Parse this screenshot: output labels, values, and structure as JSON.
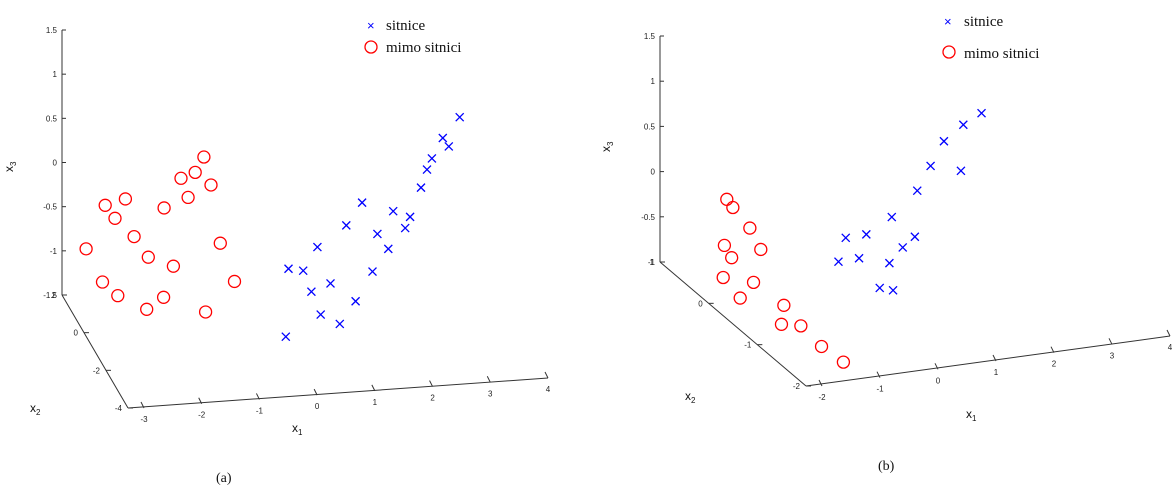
{
  "chart_data": [
    {
      "type": "scatter",
      "panel": "a",
      "caption": "(a)",
      "xlabel": "x1",
      "ylabel": "x2",
      "zlabel": "x3",
      "xlim": [
        -3,
        4
      ],
      "ylim": [
        -4,
        2
      ],
      "zlim": [
        -1.5,
        1.5
      ],
      "x_ticks": [
        "-3",
        "-2",
        "-1",
        "0",
        "1",
        "2",
        "3",
        "4"
      ],
      "y_ticks": [
        "-4",
        "-2",
        "0",
        "2"
      ],
      "z_ticks": [
        "-1.5",
        "-1",
        "-0.5",
        "0",
        "0.5",
        "1",
        "1.5"
      ],
      "legend": {
        "position": "top-right",
        "entries": [
          {
            "label": "sitnice",
            "marker": "x",
            "color": "#0000ff"
          },
          {
            "label": "mimo sitnici",
            "marker": "o",
            "color": "#ff0000"
          }
        ]
      },
      "series": [
        {
          "name": "sitnice",
          "marker": "x",
          "color": "#0000ff",
          "points": [
            [
              0.5,
              0.5,
              -0.6
            ],
            [
              0.8,
              0.8,
              -0.7
            ],
            [
              1.0,
              0.6,
              -0.4
            ],
            [
              1.2,
              0.5,
              -0.8
            ],
            [
              1.5,
              0.7,
              -0.2
            ],
            [
              1.8,
              0.9,
              0.0
            ],
            [
              2.0,
              0.6,
              -0.3
            ],
            [
              2.2,
              0.7,
              -0.5
            ],
            [
              2.5,
              0.8,
              -0.3
            ],
            [
              2.8,
              1.0,
              0.1
            ],
            [
              3.0,
              1.1,
              0.4
            ],
            [
              3.2,
              1.2,
              0.6
            ],
            [
              3.5,
              1.3,
              0.8
            ],
            [
              1.0,
              0.3,
              -1.1
            ],
            [
              1.3,
              0.2,
              -1.2
            ],
            [
              1.6,
              0.4,
              -1.0
            ],
            [
              0.4,
              0.2,
              -1.3
            ],
            [
              2.3,
              0.8,
              -0.1
            ],
            [
              2.6,
              0.9,
              -0.2
            ],
            [
              1.9,
              0.5,
              -0.7
            ],
            [
              0.9,
              0.6,
              -0.9
            ],
            [
              2.9,
              1.0,
              0.3
            ],
            [
              3.3,
              1.2,
              0.5
            ]
          ]
        },
        {
          "name": "mimo sitnici",
          "marker": "o",
          "color": "#ff0000",
          "points": [
            [
              -2.5,
              0.8,
              0.2
            ],
            [
              -2.3,
              1.0,
              0.0
            ],
            [
              -2.0,
              0.9,
              -0.2
            ],
            [
              -1.8,
              0.7,
              -0.4
            ],
            [
              -2.6,
              0.5,
              -0.6
            ],
            [
              -2.2,
              0.6,
              0.3
            ],
            [
              -1.5,
              0.9,
              0.1
            ],
            [
              -1.2,
              1.0,
              0.4
            ],
            [
              -1.0,
              0.8,
              0.5
            ],
            [
              -0.8,
              1.1,
              0.6
            ],
            [
              -1.6,
              0.4,
              -0.8
            ],
            [
              -1.9,
              0.3,
              -0.9
            ],
            [
              -0.6,
              0.7,
              -0.3
            ],
            [
              -0.4,
              0.5,
              -0.7
            ],
            [
              -2.8,
              0.9,
              -0.3
            ],
            [
              -1.4,
              0.6,
              -0.5
            ],
            [
              -0.9,
              0.4,
              -1.0
            ],
            [
              -2.4,
              0.2,
              -0.7
            ],
            [
              -1.1,
              0.9,
              0.2
            ],
            [
              -0.7,
              1.0,
              0.3
            ]
          ]
        }
      ]
    },
    {
      "type": "scatter",
      "panel": "b",
      "caption": "(b)",
      "xlabel": "x1",
      "ylabel": "x2",
      "zlabel": "x3",
      "xlim": [
        -2,
        4
      ],
      "ylim": [
        -2,
        1
      ],
      "zlim": [
        -1,
        1.5
      ],
      "x_ticks": [
        "-2",
        "-1",
        "0",
        "1",
        "2",
        "3",
        "4"
      ],
      "y_ticks": [
        "-2",
        "-1",
        "0",
        "1"
      ],
      "z_ticks": [
        "-1",
        "-0.5",
        "0",
        "0.5",
        "1",
        "1.5"
      ],
      "legend": {
        "position": "top-right",
        "entries": [
          {
            "label": "sitnice",
            "marker": "x",
            "color": "#0000ff"
          },
          {
            "label": "mimo sitnici",
            "marker": "o",
            "color": "#ff0000"
          }
        ]
      },
      "series": [
        {
          "name": "sitnice",
          "marker": "x",
          "color": "#0000ff",
          "points": [
            [
              0.5,
              0.3,
              -0.2
            ],
            [
              0.8,
              0.4,
              -0.5
            ],
            [
              1.0,
              0.5,
              -0.3
            ],
            [
              1.3,
              0.4,
              -0.6
            ],
            [
              1.5,
              0.6,
              -0.2
            ],
            [
              1.8,
              0.5,
              -0.4
            ],
            [
              2.0,
              0.7,
              0.0
            ],
            [
              2.3,
              0.8,
              0.2
            ],
            [
              2.6,
              0.9,
              0.4
            ],
            [
              3.0,
              1.0,
              0.5
            ],
            [
              1.2,
              0.2,
              -0.8
            ],
            [
              0.9,
              0.1,
              -0.7
            ],
            [
              1.6,
              0.5,
              -0.5
            ],
            [
              2.8,
              0.8,
              0.1
            ],
            [
              3.3,
              1.0,
              0.6
            ],
            [
              0.3,
              0.2,
              -0.4
            ]
          ]
        },
        {
          "name": "mimo sitnici",
          "marker": "o",
          "color": "#ff0000",
          "points": [
            [
              -1.5,
              0.3,
              -0.1
            ],
            [
              -1.3,
              0.4,
              -0.3
            ],
            [
              -1.1,
              0.2,
              -0.5
            ],
            [
              -1.4,
              0.1,
              -0.6
            ],
            [
              -1.2,
              0.5,
              0.2
            ],
            [
              -0.9,
              0.3,
              -0.2
            ],
            [
              -0.6,
              0.2,
              -0.8
            ],
            [
              -0.4,
              0.1,
              -1.0
            ],
            [
              -1.6,
              0.2,
              -0.4
            ],
            [
              -0.8,
              0.0,
              -0.9
            ],
            [
              -0.3,
              -0.2,
              -1.1
            ],
            [
              -0.1,
              -0.4,
              -1.2
            ],
            [
              -1.0,
              0.4,
              0.0
            ],
            [
              -1.3,
              0.5,
              0.3
            ]
          ]
        }
      ]
    }
  ]
}
